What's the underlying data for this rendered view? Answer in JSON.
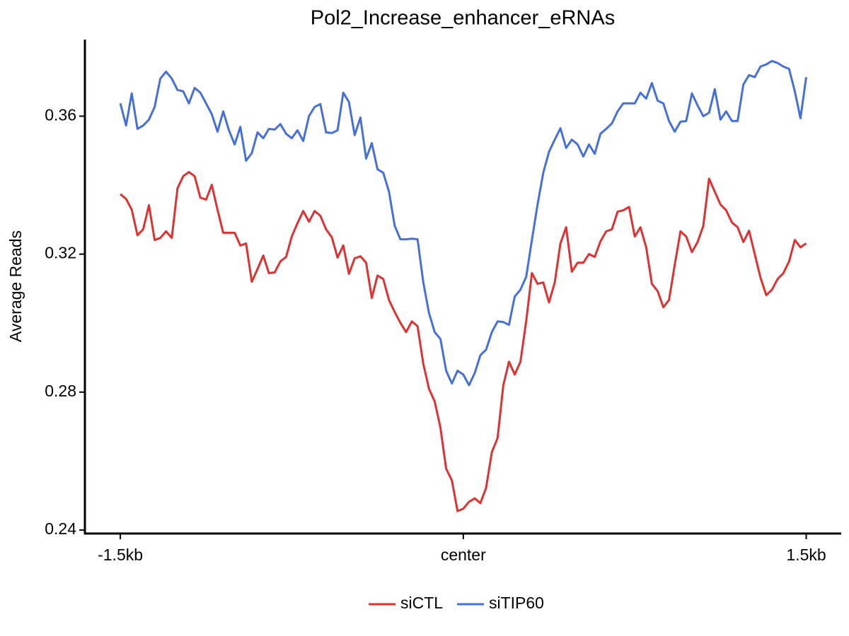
{
  "chart_data": {
    "type": "line",
    "title": "Pol2_Increase_enhancer_eRNAs",
    "y_label": "Average Reads",
    "x": [
      -1500,
      -1475,
      -1450,
      -1425,
      -1400,
      -1375,
      -1350,
      -1325,
      -1300,
      -1275,
      -1250,
      -1225,
      -1200,
      -1175,
      -1150,
      -1125,
      -1100,
      -1075,
      -1050,
      -1025,
      -1000,
      -975,
      -950,
      -925,
      -900,
      -875,
      -850,
      -825,
      -800,
      -775,
      -750,
      -725,
      -700,
      -675,
      -650,
      -625,
      -600,
      -575,
      -550,
      -525,
      -500,
      -475,
      -450,
      -425,
      -400,
      -375,
      -350,
      -325,
      -300,
      -275,
      -250,
      -225,
      -200,
      -175,
      -150,
      -125,
      -100,
      -75,
      -50,
      -25,
      0,
      25,
      50,
      75,
      100,
      125,
      150,
      175,
      200,
      225,
      250,
      275,
      300,
      325,
      350,
      375,
      400,
      425,
      450,
      475,
      500,
      525,
      550,
      575,
      600,
      625,
      650,
      675,
      700,
      725,
      750,
      775,
      800,
      825,
      850,
      875,
      900,
      925,
      950,
      975,
      1000,
      1025,
      1050,
      1075,
      1100,
      1125,
      1150,
      1175,
      1200,
      1225,
      1250,
      1275,
      1300,
      1325,
      1350,
      1375,
      1400,
      1425,
      1450,
      1475,
      1500
    ],
    "series": [
      {
        "name": "siCTL",
        "color": "#e03030",
        "values": [
          0.3374,
          0.336,
          0.3329,
          0.3255,
          0.3272,
          0.3342,
          0.3241,
          0.3247,
          0.3266,
          0.3247,
          0.3391,
          0.3426,
          0.3438,
          0.3426,
          0.3364,
          0.3358,
          0.3401,
          0.3329,
          0.3262,
          0.3262,
          0.3262,
          0.3225,
          0.3231,
          0.312,
          0.3157,
          0.3196,
          0.3145,
          0.3147,
          0.3179,
          0.3192,
          0.3251,
          0.329,
          0.3325,
          0.3294,
          0.3325,
          0.3311,
          0.3272,
          0.3249,
          0.319,
          0.3225,
          0.3143,
          0.3188,
          0.3194,
          0.3175,
          0.3073,
          0.3138,
          0.3128,
          0.3067,
          0.3032,
          0.3001,
          0.2974,
          0.3005,
          0.2991,
          0.2882,
          0.281,
          0.2773,
          0.2697,
          0.2578,
          0.2544,
          0.2455,
          0.2462,
          0.2482,
          0.2492,
          0.2478,
          0.2523,
          0.2626,
          0.2667,
          0.282,
          0.2888,
          0.2851,
          0.2888,
          0.3005,
          0.3145,
          0.3114,
          0.3118,
          0.306,
          0.3118,
          0.3231,
          0.3278,
          0.3149,
          0.3175,
          0.3175,
          0.32,
          0.3192,
          0.3237,
          0.3266,
          0.3272,
          0.3323,
          0.3327,
          0.3337,
          0.3251,
          0.3278,
          0.322,
          0.3114,
          0.3093,
          0.3046,
          0.3067,
          0.3169,
          0.3266,
          0.3251,
          0.3206,
          0.3235,
          0.3282,
          0.3419,
          0.3381,
          0.3344,
          0.3327,
          0.3292,
          0.3278,
          0.3235,
          0.3268,
          0.32,
          0.3132,
          0.3081,
          0.3097,
          0.3128,
          0.3145,
          0.3179,
          0.3241,
          0.322,
          0.3231
        ]
      },
      {
        "name": "siTIP60",
        "color": "#4570dc",
        "values": [
          0.3637,
          0.3573,
          0.3666,
          0.3563,
          0.3573,
          0.359,
          0.3627,
          0.3709,
          0.3729,
          0.3709,
          0.3676,
          0.3672,
          0.3637,
          0.3682,
          0.3668,
          0.3637,
          0.3606,
          0.3555,
          0.3614,
          0.3559,
          0.3518,
          0.3569,
          0.3471,
          0.3493,
          0.3553,
          0.3536,
          0.3563,
          0.3561,
          0.3577,
          0.3549,
          0.3536,
          0.3559,
          0.3528,
          0.36,
          0.3627,
          0.3635,
          0.3553,
          0.3551,
          0.3559,
          0.3668,
          0.3641,
          0.3545,
          0.3596,
          0.3477,
          0.3522,
          0.3446,
          0.3436,
          0.3381,
          0.3282,
          0.3243,
          0.3243,
          0.3245,
          0.3243,
          0.3118,
          0.303,
          0.2974,
          0.2954,
          0.2862,
          0.2825,
          0.2862,
          0.2851,
          0.282,
          0.2855,
          0.2907,
          0.2923,
          0.2974,
          0.3005,
          0.3003,
          0.2995,
          0.3077,
          0.3097,
          0.3134,
          0.3241,
          0.3344,
          0.3436,
          0.3497,
          0.3532,
          0.3565,
          0.3508,
          0.3532,
          0.3518,
          0.3483,
          0.3518,
          0.3491,
          0.3549,
          0.3563,
          0.3579,
          0.3614,
          0.3637,
          0.3637,
          0.3637,
          0.3668,
          0.3651,
          0.3696,
          0.3645,
          0.3637,
          0.3586,
          0.3555,
          0.3584,
          0.3586,
          0.3666,
          0.3631,
          0.36,
          0.361,
          0.3678,
          0.359,
          0.3614,
          0.3586,
          0.3586,
          0.3692,
          0.3719,
          0.3713,
          0.3744,
          0.375,
          0.376,
          0.3754,
          0.3744,
          0.3737,
          0.3672,
          0.3594,
          0.3713
        ]
      }
    ],
    "xlim": [
      -1655,
      1650
    ],
    "ylim": [
      0.239,
      0.382
    ],
    "xticks": [
      {
        "value": -1500,
        "label": "-1.5kb"
      },
      {
        "value": 0,
        "label": "center"
      },
      {
        "value": 1500,
        "label": "1.5kb"
      }
    ],
    "yticks": [
      0.24,
      0.28,
      0.32,
      0.36
    ],
    "grid": false,
    "legend": "bottom"
  }
}
